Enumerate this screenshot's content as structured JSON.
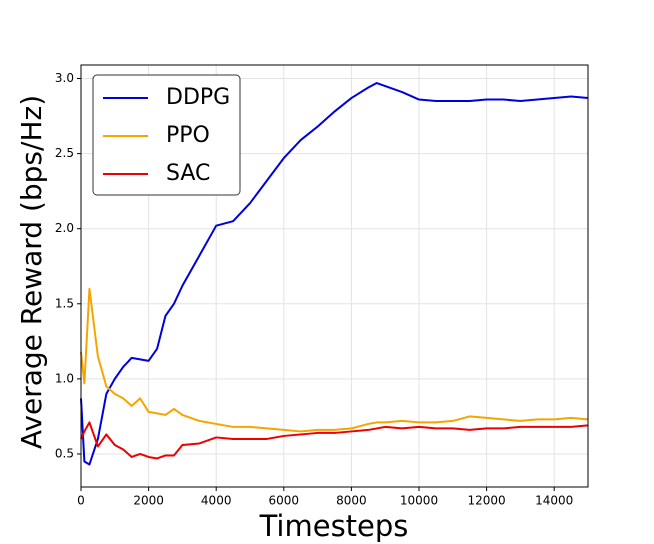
{
  "chart_data": {
    "type": "line",
    "xlabel": "Timesteps",
    "ylabel": "Average Reward (bps/Hz)",
    "x": [
      0,
      100,
      250,
      500,
      750,
      1000,
      1250,
      1500,
      1750,
      2000,
      2250,
      2500,
      2750,
      3000,
      3500,
      4000,
      4500,
      5000,
      5500,
      6000,
      6500,
      7000,
      7500,
      8000,
      8500,
      8750,
      9000,
      9500,
      10000,
      10500,
      11000,
      11500,
      12000,
      12500,
      13000,
      13500,
      14000,
      14500,
      15000
    ],
    "series": [
      {
        "name": "DDPG",
        "color": "#0000dd",
        "values": [
          0.87,
          0.45,
          0.43,
          0.6,
          0.9,
          1.0,
          1.08,
          1.14,
          1.13,
          1.12,
          1.2,
          1.42,
          1.5,
          1.62,
          1.82,
          2.02,
          2.05,
          2.17,
          2.32,
          2.47,
          2.59,
          2.68,
          2.78,
          2.87,
          2.94,
          2.97,
          2.95,
          2.91,
          2.86,
          2.85,
          2.85,
          2.85,
          2.86,
          2.86,
          2.85,
          2.86,
          2.87,
          2.88,
          2.87
        ]
      },
      {
        "name": "PPO",
        "color": "#f5a500",
        "values": [
          1.18,
          0.97,
          1.6,
          1.15,
          0.95,
          0.9,
          0.87,
          0.82,
          0.87,
          0.78,
          0.77,
          0.76,
          0.8,
          0.76,
          0.72,
          0.7,
          0.68,
          0.68,
          0.67,
          0.66,
          0.65,
          0.66,
          0.66,
          0.67,
          0.7,
          0.71,
          0.71,
          0.72,
          0.71,
          0.71,
          0.72,
          0.75,
          0.74,
          0.73,
          0.72,
          0.73,
          0.73,
          0.74,
          0.73
        ]
      },
      {
        "name": "SAC",
        "color": "#ee0000",
        "values": [
          0.6,
          0.65,
          0.71,
          0.55,
          0.63,
          0.56,
          0.53,
          0.48,
          0.5,
          0.48,
          0.47,
          0.49,
          0.49,
          0.56,
          0.57,
          0.61,
          0.6,
          0.6,
          0.6,
          0.62,
          0.63,
          0.64,
          0.64,
          0.65,
          0.66,
          0.67,
          0.68,
          0.67,
          0.68,
          0.67,
          0.67,
          0.66,
          0.67,
          0.67,
          0.68,
          0.68,
          0.68,
          0.68,
          0.69
        ]
      }
    ],
    "xlim": [
      0,
      15000
    ],
    "xticks": [
      0,
      2000,
      4000,
      6000,
      8000,
      10000,
      12000,
      14000
    ],
    "ylim": [
      0.28,
      3.09
    ],
    "yticks": [
      0.5,
      {
        "value": 1,
        "label": "1.0"
      },
      1.5,
      {
        "value": 2,
        "label": "2.0"
      },
      2.5,
      {
        "value": 3,
        "label": "3.0"
      }
    ],
    "grid": true,
    "legend": "upper left"
  }
}
